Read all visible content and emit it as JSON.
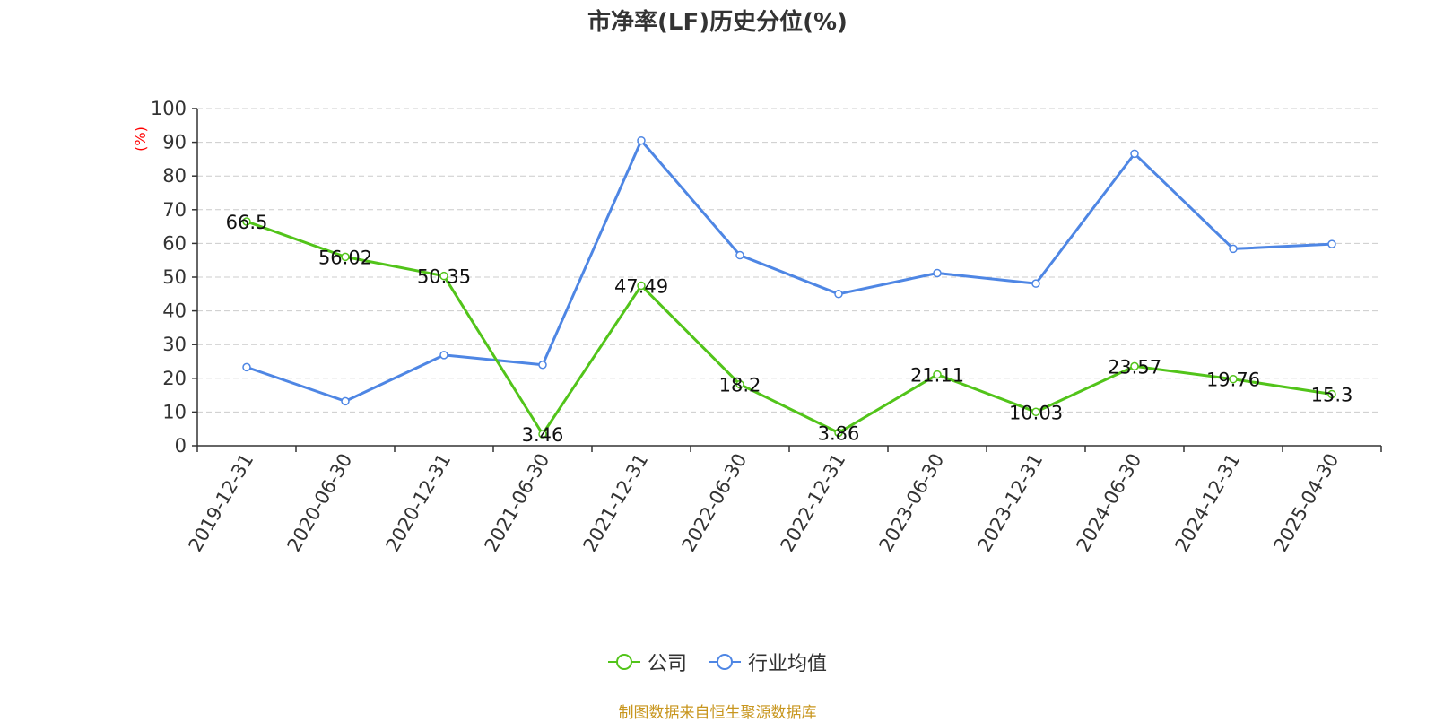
{
  "chart_data": {
    "type": "line",
    "title": "市净率(LF)历史分位(%)",
    "ylabel": "(%)",
    "xlabel": "",
    "ylim": [
      0,
      100
    ],
    "yticks": [
      0,
      10,
      20,
      30,
      40,
      50,
      60,
      70,
      80,
      90,
      100
    ],
    "grid": true,
    "legend_position": "bottom",
    "categories": [
      "2019-12-31",
      "2020-06-30",
      "2020-12-31",
      "2021-06-30",
      "2021-12-31",
      "2022-06-30",
      "2022-12-31",
      "2023-06-30",
      "2023-12-31",
      "2024-06-30",
      "2024-12-31",
      "2025-04-30"
    ],
    "series": [
      {
        "name": "公司",
        "color": "#52c41a",
        "show_labels": true,
        "values": [
          66.5,
          56.02,
          50.35,
          3.46,
          47.49,
          18.2,
          3.86,
          21.11,
          10.03,
          23.57,
          19.76,
          15.3
        ]
      },
      {
        "name": "行业均值",
        "color": "#4e86e4",
        "show_labels": false,
        "values": [
          23.3,
          13.2,
          26.9,
          24.0,
          90.5,
          56.5,
          45.0,
          51.2,
          48.1,
          86.6,
          58.4,
          59.8
        ]
      }
    ]
  },
  "legend": {
    "company_label": "公司",
    "industry_label": "行业均值"
  },
  "source": "制图数据来自恒生聚源数据库"
}
